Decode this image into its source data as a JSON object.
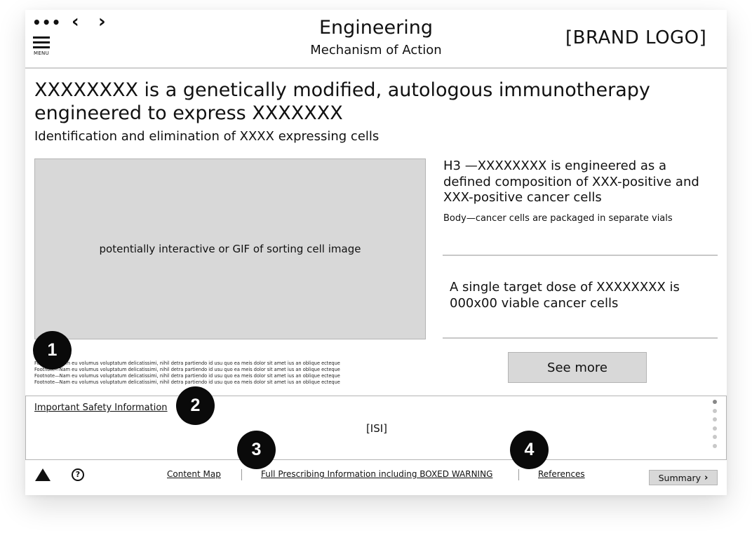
{
  "header": {
    "more_glyph": "•••",
    "menu_label": "MENU",
    "back_glyph": "‹",
    "forward_glyph": "›",
    "title": "Engineering",
    "subtitle": "Mechanism of Action",
    "brand": "[BRAND LOGO]"
  },
  "main": {
    "headline": "XXXXXXXX is a genetically modified, autologous immunotherapy engineered to express XXXXXXX",
    "subhead": "Identification and elimination of XXXX expressing cells",
    "media_caption": "potentially interactive or GIF of sorting cell image",
    "h3": "H3 —XXXXXXXX is engineered as a defined composition of XXX-positive and XXX-positive cancer cells",
    "body": "Body—cancer cells are packaged in separate vials",
    "dose": "A single target dose of XXXXXXXX is 000x00 viable cancer cells",
    "see_more": "See more",
    "footnotes": [
      "Footnote—Nam eu volumus voluptatum delicatissimi, nihil detra partiendo id usu quo ea meis  dolor sit amet ius an oblique ecteque",
      "Footnote—Nam eu volumus voluptatum delicatissimi, nihil detra partiendo id usu quo ea meis  dolor sit amet ius an oblique ecteque",
      "Footnote—Nam eu volumus voluptatum delicatissimi, nihil detra partiendo id usu quo ea meis  dolor sit amet ius an oblique ecteque",
      "Footnote—Nam eu volumus voluptatum delicatissimi, nihil detra partiendo id usu quo ea meis  dolor sit amet ius an oblique ecteque"
    ]
  },
  "isi": {
    "link": "Important Safety Information",
    "text": "[ISI]"
  },
  "footer": {
    "help_glyph": "?",
    "content_map": "Content Map",
    "prescribing": "Full Prescribing Information including BOXED WARNING",
    "references": "References",
    "summary": "Summary",
    "summary_chevron": "›"
  },
  "markers": [
    "1",
    "2",
    "3",
    "4"
  ],
  "icons": {
    "more": "more-dots-icon",
    "menu": "hamburger-menu-icon",
    "back": "chevron-left-icon",
    "forward": "chevron-right-icon",
    "warning": "warning-triangle-icon",
    "help": "help-circle-icon"
  }
}
